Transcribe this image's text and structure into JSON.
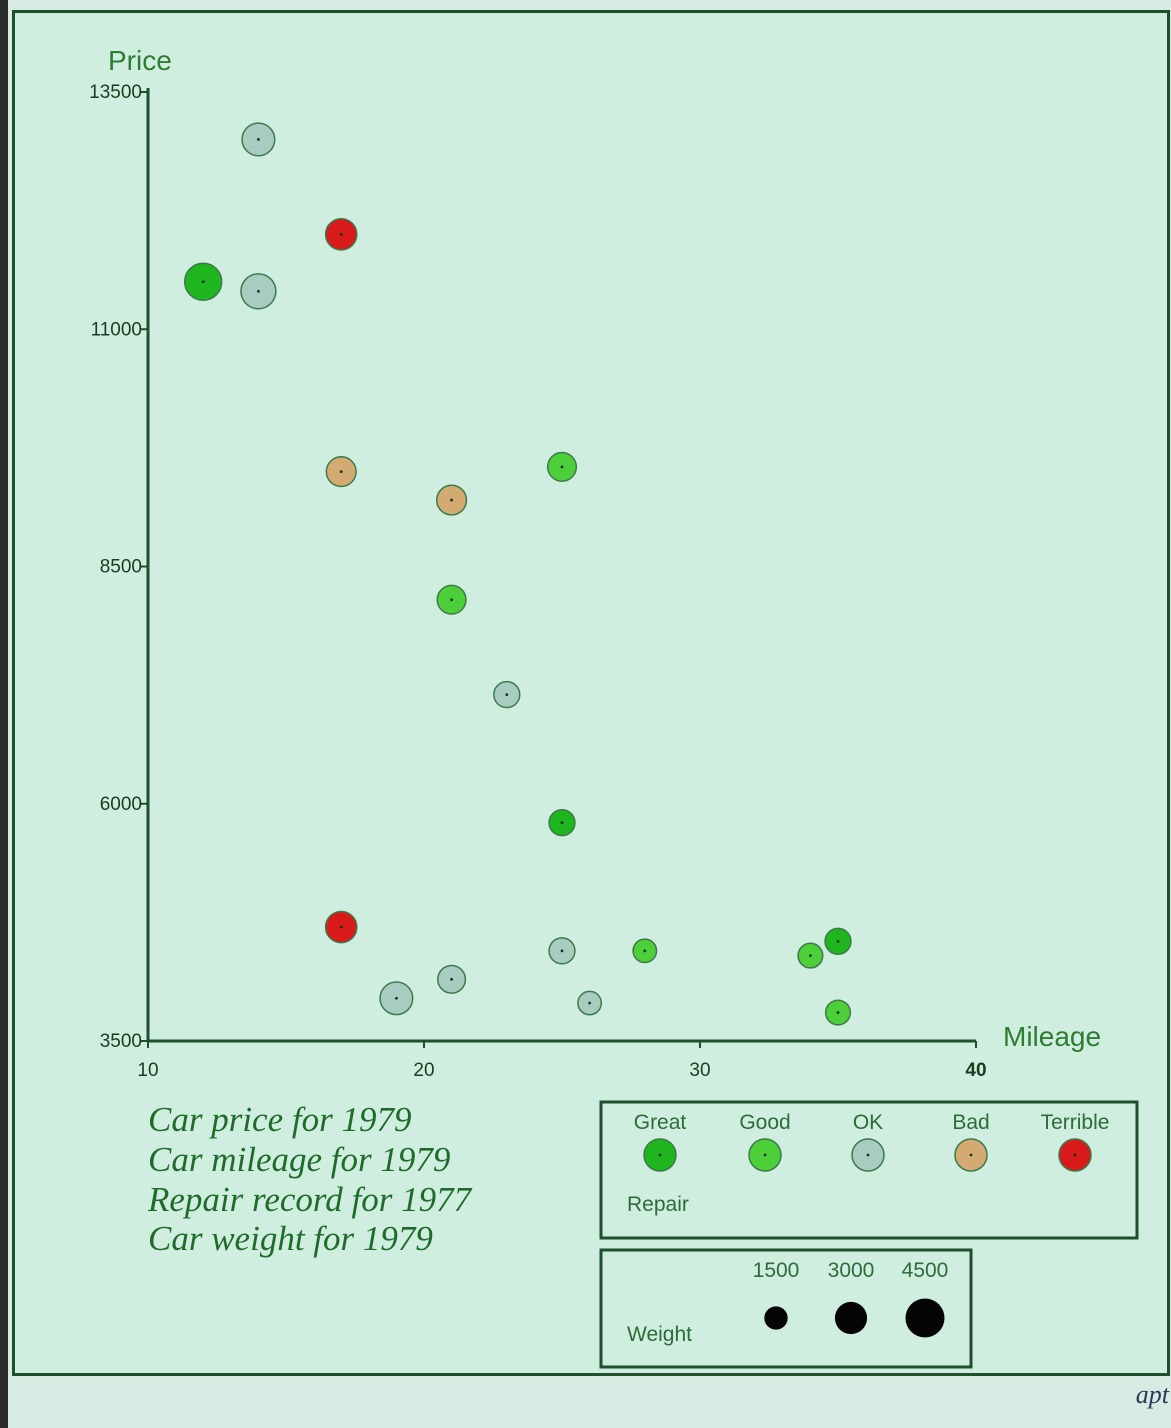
{
  "chart_data": {
    "type": "scatter",
    "xlabel": "Mileage",
    "ylabel": "Price",
    "xlim": [
      10,
      40
    ],
    "ylim": [
      3500,
      13500
    ],
    "xticks": [
      10,
      20,
      30,
      40
    ],
    "yticks": [
      3500,
      6000,
      8500,
      11000,
      13500
    ],
    "size_encoding": "Weight",
    "color_encoding": "Repair",
    "repair_colors": {
      "Great": "#1fb51f",
      "Good": "#4ccf38",
      "OK": "#a8ccbf",
      "Bad": "#d4aa73",
      "Terrible": "#d81a1a"
    },
    "points": [
      {
        "mileage": 14,
        "price": 13000,
        "weight": 3500,
        "repair": "OK"
      },
      {
        "mileage": 17,
        "price": 12000,
        "weight": 3200,
        "repair": "Terrible"
      },
      {
        "mileage": 12,
        "price": 11500,
        "weight": 4500,
        "repair": "Great"
      },
      {
        "mileage": 14,
        "price": 11400,
        "weight": 4000,
        "repair": "OK"
      },
      {
        "mileage": 17,
        "price": 9500,
        "weight": 2900,
        "repair": "Bad"
      },
      {
        "mileage": 21,
        "price": 9200,
        "weight": 2900,
        "repair": "Bad"
      },
      {
        "mileage": 25,
        "price": 9550,
        "weight": 2700,
        "repair": "Good"
      },
      {
        "mileage": 21,
        "price": 8150,
        "weight": 2700,
        "repair": "Good"
      },
      {
        "mileage": 23,
        "price": 7150,
        "weight": 2200,
        "repair": "OK"
      },
      {
        "mileage": 25,
        "price": 5800,
        "weight": 2200,
        "repair": "Great"
      },
      {
        "mileage": 17,
        "price": 4700,
        "weight": 3200,
        "repair": "Terrible"
      },
      {
        "mileage": 25,
        "price": 4450,
        "weight": 2200,
        "repair": "OK"
      },
      {
        "mileage": 28,
        "price": 4450,
        "weight": 1800,
        "repair": "Good"
      },
      {
        "mileage": 34,
        "price": 4400,
        "weight": 2000,
        "repair": "Good"
      },
      {
        "mileage": 35,
        "price": 4550,
        "weight": 2200,
        "repair": "Great"
      },
      {
        "mileage": 21,
        "price": 4150,
        "weight": 2500,
        "repair": "OK"
      },
      {
        "mileage": 19,
        "price": 3950,
        "weight": 3500,
        "repair": "OK"
      },
      {
        "mileage": 26,
        "price": 3900,
        "weight": 1800,
        "repair": "OK"
      },
      {
        "mileage": 35,
        "price": 3800,
        "weight": 2000,
        "repair": "Good"
      }
    ],
    "legend_repair": {
      "title": "Repair",
      "labels": [
        "Great",
        "Good",
        "OK",
        "Bad",
        "Terrible"
      ]
    },
    "legend_weight": {
      "title": "Weight",
      "labels": [
        "1500",
        "3000",
        "4500"
      ],
      "values": [
        1500,
        3000,
        4500
      ]
    }
  },
  "captions": [
    "Car price for 1979",
    "Car mileage for 1979",
    "Repair record for 1977",
    "Car weight for 1979"
  ],
  "footer_mark": "apt"
}
